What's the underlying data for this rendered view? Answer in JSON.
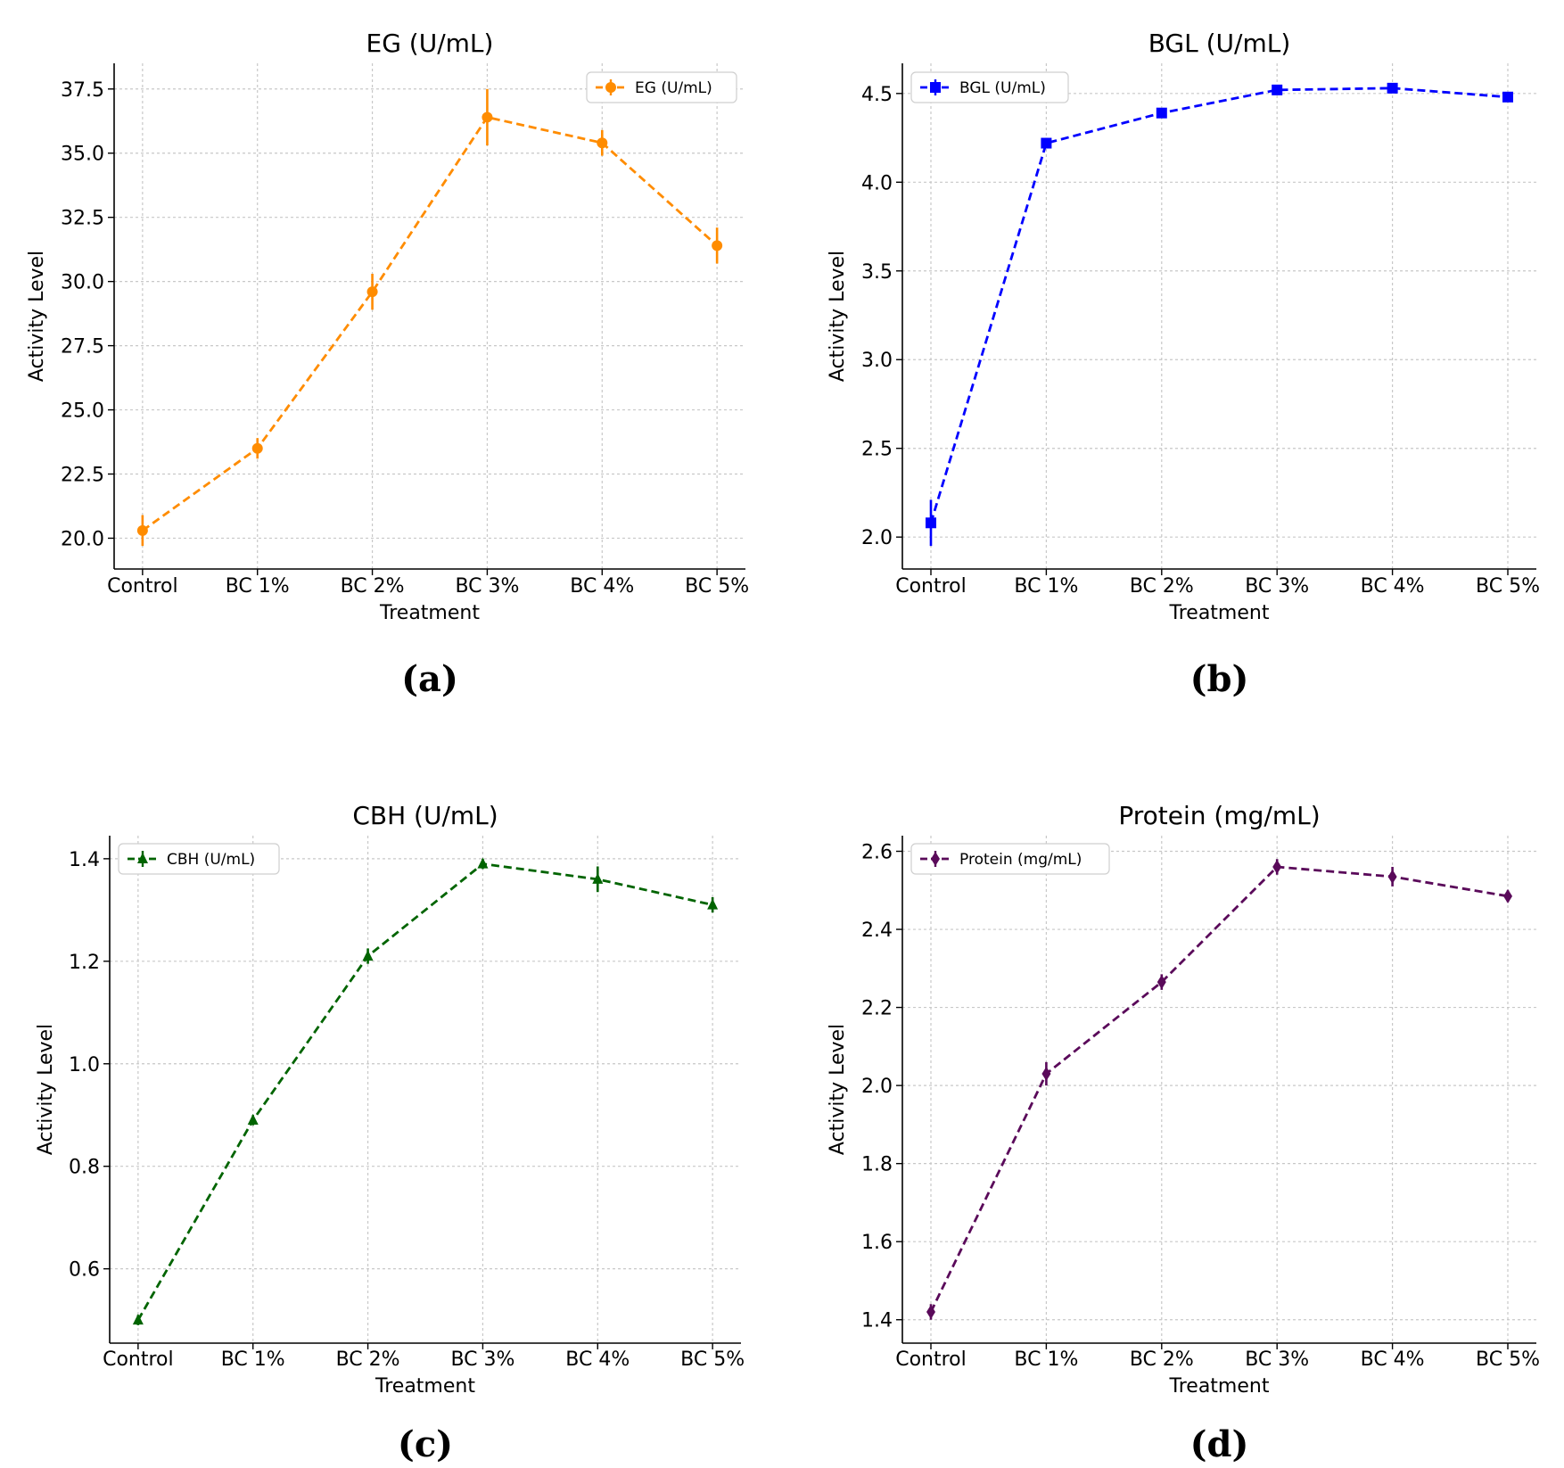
{
  "chart_data": [
    {
      "type": "line",
      "title": "EG (U/mL)",
      "xlabel": "Treatment",
      "ylabel": "Activity Level",
      "categories": [
        "Control",
        "BC 1%",
        "BC 2%",
        "BC 3%",
        "BC 4%",
        "BC 5%"
      ],
      "ylim": [
        18.8,
        38.5
      ],
      "yticks": [
        "20.0",
        "22.5",
        "25.0",
        "27.5",
        "30.0",
        "32.5",
        "35.0",
        "37.5"
      ],
      "series": [
        {
          "name": "EG (U/mL)",
          "values": [
            20.3,
            23.5,
            29.6,
            36.4,
            35.4,
            31.4
          ],
          "errors": [
            0.6,
            0.4,
            0.7,
            1.1,
            0.5,
            0.7
          ],
          "color": "#ff8c00",
          "marker": "circle",
          "linestyle": "dashed"
        }
      ],
      "legend": "top-right",
      "grid": true,
      "panel_label": "(a)"
    },
    {
      "type": "line",
      "title": "BGL (U/mL)",
      "xlabel": "Treatment",
      "ylabel": "Activity Level",
      "categories": [
        "Control",
        "BC 1%",
        "BC 2%",
        "BC 3%",
        "BC 4%",
        "BC 5%"
      ],
      "ylim": [
        1.82,
        4.67
      ],
      "yticks": [
        "2.0",
        "2.5",
        "3.0",
        "3.5",
        "4.0",
        "4.5"
      ],
      "series": [
        {
          "name": "BGL (U/mL)",
          "values": [
            2.08,
            4.22,
            4.39,
            4.52,
            4.53,
            4.48
          ],
          "errors": [
            0.13,
            0.03,
            0.02,
            0.02,
            0.02,
            0.02
          ],
          "color": "#0000ff",
          "marker": "square",
          "linestyle": "dashed"
        }
      ],
      "legend": "top-left",
      "grid": true,
      "panel_label": "(b)"
    },
    {
      "type": "line",
      "title": "CBH (U/mL)",
      "xlabel": "Treatment",
      "ylabel": "Activity Level",
      "categories": [
        "Control",
        "BC 1%",
        "BC 2%",
        "BC 3%",
        "BC 4%",
        "BC 5%"
      ],
      "ylim": [
        0.455,
        1.445
      ],
      "yticks": [
        "0.6",
        "0.8",
        "1.0",
        "1.2",
        "1.4"
      ],
      "series": [
        {
          "name": "CBH (U/mL)",
          "values": [
            0.5,
            0.89,
            1.21,
            1.39,
            1.36,
            1.31
          ],
          "errors": [
            0.01,
            0.01,
            0.015,
            0.01,
            0.025,
            0.015
          ],
          "color": "#006400",
          "marker": "triangle",
          "linestyle": "dashed"
        }
      ],
      "legend": "top-left",
      "grid": true,
      "panel_label": "(c)"
    },
    {
      "type": "line",
      "title": "Protein (mg/mL)",
      "xlabel": "Treatment",
      "ylabel": "Activity Level",
      "categories": [
        "Control",
        "BC 1%",
        "BC 2%",
        "BC 3%",
        "BC 4%",
        "BC 5%"
      ],
      "ylim": [
        1.34,
        2.64
      ],
      "yticks": [
        "1.4",
        "1.6",
        "1.8",
        "2.0",
        "2.2",
        "2.4",
        "2.6"
      ],
      "series": [
        {
          "name": "Protein (mg/mL)",
          "values": [
            1.42,
            2.03,
            2.265,
            2.56,
            2.535,
            2.485
          ],
          "errors": [
            0.02,
            0.03,
            0.02,
            0.02,
            0.025,
            0.015
          ],
          "color": "#5a0a5a",
          "marker": "diamond",
          "linestyle": "dashed"
        }
      ],
      "legend": "top-left",
      "grid": true,
      "panel_label": "(d)"
    }
  ]
}
